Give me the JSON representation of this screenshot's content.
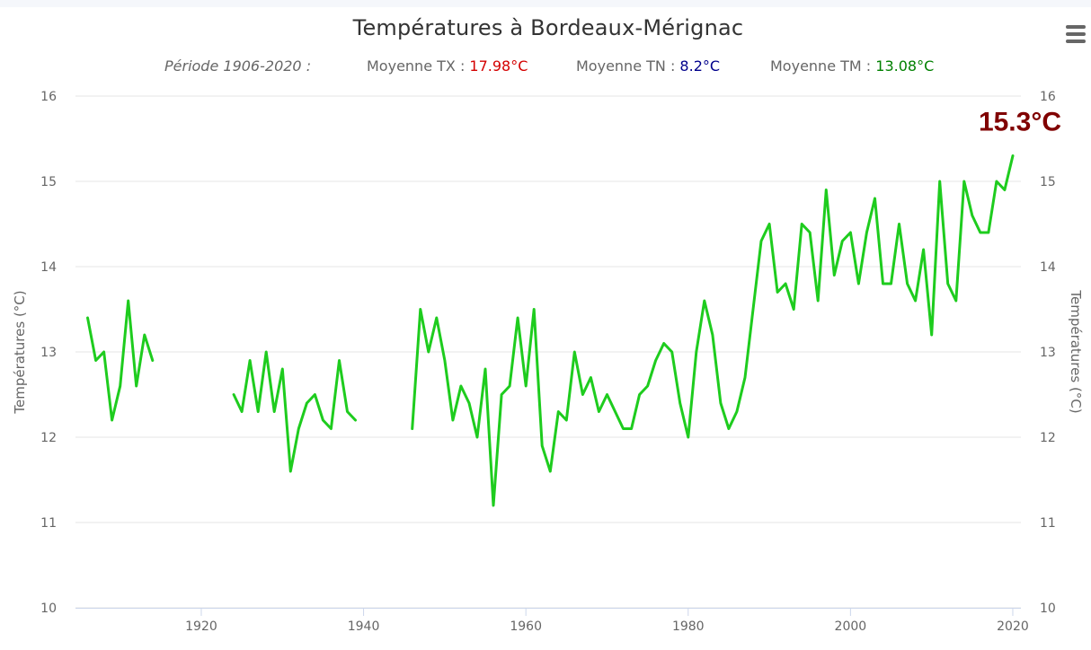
{
  "header": {
    "title": "Températures à Bordeaux-Mérignac",
    "period_label": "Période 1906-2020 :",
    "stats": [
      {
        "label": "Moyenne TX : ",
        "value": "17.98°C",
        "color": "#d40000"
      },
      {
        "label": "Moyenne TN : ",
        "value": "8.2°C",
        "color": "#00008b"
      },
      {
        "label": "Moyenne TM : ",
        "value": "13.08°C",
        "color": "#008000"
      }
    ]
  },
  "menu": {
    "icon": "hamburger-menu-icon"
  },
  "chart_data": {
    "type": "line",
    "title": "Températures à Bordeaux-Mérignac",
    "ylabel": "Températures (°C)",
    "ylabel_right": "Températures (°C)",
    "xlabel": "",
    "xlim": [
      1904.5,
      2021
    ],
    "ylim": [
      10,
      16
    ],
    "x_ticks": [
      1920,
      1940,
      1960,
      1980,
      2000,
      2020
    ],
    "y_ticks": [
      10,
      11,
      12,
      13,
      14,
      15,
      16
    ],
    "grid": true,
    "legend": "none",
    "series": [
      {
        "color": "#1ecc1e",
        "points": [
          [
            1906,
            13.4
          ],
          [
            1907,
            12.9
          ],
          [
            1908,
            13.0
          ],
          [
            1909,
            12.2
          ],
          [
            1910,
            12.6
          ],
          [
            1911,
            13.6
          ],
          [
            1912,
            12.6
          ],
          [
            1913,
            13.2
          ],
          [
            1914,
            12.9
          ],
          [
            1915,
            null
          ],
          [
            1916,
            null
          ],
          [
            1917,
            null
          ],
          [
            1918,
            null
          ],
          [
            1919,
            null
          ],
          [
            1920,
            null
          ],
          [
            1921,
            null
          ],
          [
            1922,
            null
          ],
          [
            1923,
            null
          ],
          [
            1924,
            12.5
          ],
          [
            1925,
            12.3
          ],
          [
            1926,
            12.9
          ],
          [
            1927,
            12.3
          ],
          [
            1928,
            13.0
          ],
          [
            1929,
            12.3
          ],
          [
            1930,
            12.8
          ],
          [
            1931,
            11.6
          ],
          [
            1932,
            12.1
          ],
          [
            1933,
            12.4
          ],
          [
            1934,
            12.5
          ],
          [
            1935,
            12.2
          ],
          [
            1936,
            12.1
          ],
          [
            1937,
            12.9
          ],
          [
            1938,
            12.3
          ],
          [
            1939,
            12.2
          ],
          [
            1940,
            null
          ],
          [
            1941,
            null
          ],
          [
            1942,
            null
          ],
          [
            1943,
            null
          ],
          [
            1944,
            null
          ],
          [
            1945,
            null
          ],
          [
            1946,
            12.1
          ],
          [
            1947,
            13.5
          ],
          [
            1948,
            13.0
          ],
          [
            1949,
            13.4
          ],
          [
            1950,
            12.9
          ],
          [
            1951,
            12.2
          ],
          [
            1952,
            12.6
          ],
          [
            1953,
            12.4
          ],
          [
            1954,
            12.0
          ],
          [
            1955,
            12.8
          ],
          [
            1956,
            11.2
          ],
          [
            1957,
            12.5
          ],
          [
            1958,
            12.6
          ],
          [
            1959,
            13.4
          ],
          [
            1960,
            12.6
          ],
          [
            1961,
            13.5
          ],
          [
            1962,
            11.9
          ],
          [
            1963,
            11.6
          ],
          [
            1964,
            12.3
          ],
          [
            1965,
            12.2
          ],
          [
            1966,
            13.0
          ],
          [
            1967,
            12.5
          ],
          [
            1968,
            12.7
          ],
          [
            1969,
            12.3
          ],
          [
            1970,
            12.5
          ],
          [
            1971,
            12.3
          ],
          [
            1972,
            12.1
          ],
          [
            1973,
            12.1
          ],
          [
            1974,
            12.5
          ],
          [
            1975,
            12.6
          ],
          [
            1976,
            12.9
          ],
          [
            1977,
            13.1
          ],
          [
            1978,
            13.0
          ],
          [
            1979,
            12.4
          ],
          [
            1980,
            12.0
          ],
          [
            1981,
            13.0
          ],
          [
            1982,
            13.6
          ],
          [
            1983,
            13.2
          ],
          [
            1984,
            12.4
          ],
          [
            1985,
            12.1
          ],
          [
            1986,
            12.3
          ],
          [
            1987,
            12.7
          ],
          [
            1988,
            13.5
          ],
          [
            1989,
            14.3
          ],
          [
            1990,
            14.5
          ],
          [
            1991,
            13.7
          ],
          [
            1992,
            13.8
          ],
          [
            1993,
            13.5
          ],
          [
            1994,
            14.5
          ],
          [
            1995,
            14.4
          ],
          [
            1996,
            13.6
          ],
          [
            1997,
            14.9
          ],
          [
            1998,
            13.9
          ],
          [
            1999,
            14.3
          ],
          [
            2000,
            14.4
          ],
          [
            2001,
            13.8
          ],
          [
            2002,
            14.4
          ],
          [
            2003,
            14.8
          ],
          [
            2004,
            13.8
          ],
          [
            2005,
            13.8
          ],
          [
            2006,
            14.5
          ],
          [
            2007,
            13.8
          ],
          [
            2008,
            13.6
          ],
          [
            2009,
            14.2
          ],
          [
            2010,
            13.2
          ],
          [
            2011,
            15.0
          ],
          [
            2012,
            13.8
          ],
          [
            2013,
            13.6
          ],
          [
            2014,
            15.0
          ],
          [
            2015,
            14.6
          ],
          [
            2016,
            14.4
          ],
          [
            2017,
            14.4
          ],
          [
            2018,
            15.0
          ],
          [
            2019,
            14.9
          ],
          [
            2020,
            15.3
          ]
        ]
      }
    ],
    "annotations": [
      {
        "text": "15.3°C",
        "x": 2020,
        "y": 15.3,
        "color": "#800000"
      }
    ]
  }
}
